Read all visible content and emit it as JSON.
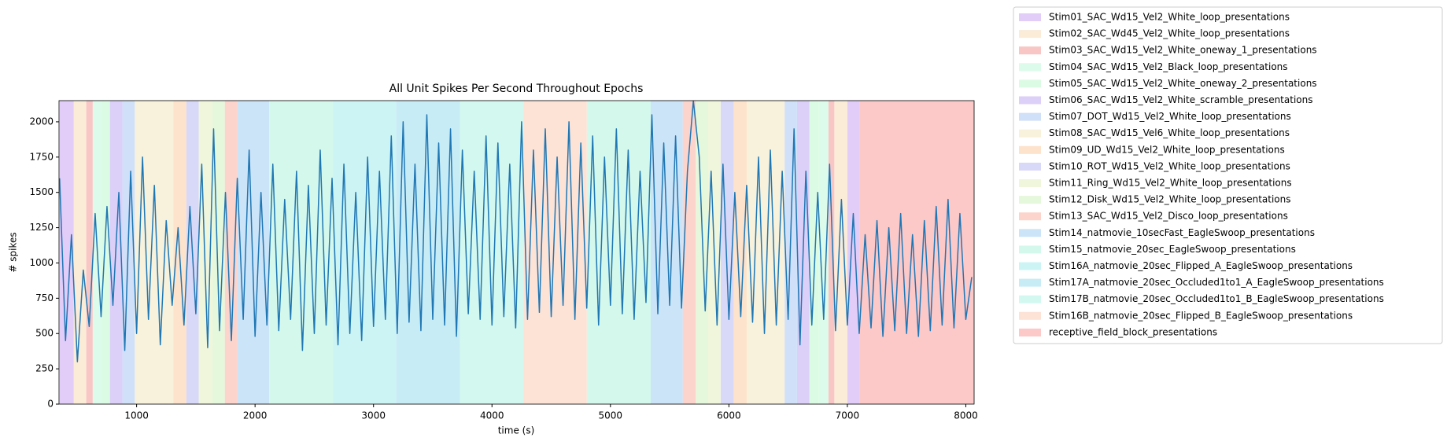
{
  "chart_data": {
    "type": "line",
    "title": "All Unit Spikes Per Second Throughout Epochs",
    "x_label": "time (s)",
    "y_label": "# spikes",
    "xlim": [
      345,
      8070
    ],
    "ylim": [
      0,
      2150
    ],
    "xticks": [
      1000,
      2000,
      3000,
      4000,
      5000,
      6000,
      7000,
      8000
    ],
    "yticks": [
      0,
      250,
      500,
      750,
      1000,
      1250,
      1500,
      1750,
      2000
    ],
    "legend": "outside-right",
    "x": [
      350,
      400,
      450,
      500,
      550,
      600,
      650,
      700,
      750,
      800,
      850,
      900,
      950,
      1000,
      1050,
      1100,
      1150,
      1200,
      1250,
      1300,
      1350,
      1400,
      1450,
      1500,
      1550,
      1600,
      1650,
      1700,
      1750,
      1800,
      1850,
      1900,
      1950,
      2000,
      2050,
      2100,
      2150,
      2200,
      2250,
      2300,
      2350,
      2400,
      2450,
      2500,
      2550,
      2600,
      2650,
      2700,
      2750,
      2800,
      2850,
      2900,
      2950,
      3000,
      3050,
      3100,
      3150,
      3200,
      3250,
      3300,
      3350,
      3400,
      3450,
      3500,
      3550,
      3600,
      3650,
      3700,
      3750,
      3800,
      3850,
      3900,
      3950,
      4000,
      4050,
      4100,
      4150,
      4200,
      4250,
      4300,
      4350,
      4400,
      4450,
      4500,
      4550,
      4600,
      4650,
      4700,
      4750,
      4800,
      4850,
      4900,
      4950,
      5000,
      5050,
      5100,
      5150,
      5200,
      5250,
      5300,
      5350,
      5400,
      5450,
      5500,
      5550,
      5600,
      5650,
      5700,
      5750,
      5800,
      5850,
      5900,
      5950,
      6000,
      6050,
      6100,
      6150,
      6200,
      6250,
      6300,
      6350,
      6400,
      6450,
      6500,
      6550,
      6600,
      6650,
      6700,
      6750,
      6800,
      6850,
      6900,
      6950,
      7000,
      7050,
      7100,
      7150,
      7200,
      7250,
      7300,
      7350,
      7400,
      7450,
      7500,
      7550,
      7600,
      7650,
      7700,
      7750,
      7800,
      7850,
      7900,
      7950,
      8000,
      8050
    ],
    "series": [
      {
        "color": "#1f77b4",
        "values": [
          1600,
          450,
          1200,
          300,
          950,
          550,
          1350,
          620,
          1400,
          700,
          1500,
          380,
          1650,
          500,
          1750,
          600,
          1550,
          420,
          1300,
          700,
          1250,
          560,
          1400,
          640,
          1700,
          400,
          1950,
          520,
          1500,
          450,
          1600,
          600,
          1800,
          480,
          1500,
          560,
          1700,
          520,
          1450,
          600,
          1650,
          380,
          1550,
          500,
          1800,
          560,
          1600,
          420,
          1700,
          500,
          1500,
          450,
          1750,
          550,
          1650,
          600,
          1900,
          500,
          2000,
          580,
          1700,
          520,
          2050,
          600,
          1850,
          560,
          1950,
          480,
          1800,
          640,
          1650,
          600,
          1900,
          560,
          1850,
          620,
          1700,
          540,
          2000,
          600,
          1800,
          650,
          1950,
          620,
          1750,
          700,
          2000,
          600,
          1850,
          680,
          1900,
          560,
          1750,
          700,
          1950,
          640,
          1800,
          600,
          1650,
          720,
          2050,
          640,
          1850,
          700,
          1900,
          680,
          1650,
          2150,
          1750,
          660,
          1650,
          560,
          1700,
          600,
          1500,
          620,
          1550,
          580,
          1750,
          500,
          1800,
          560,
          1650,
          600,
          1950,
          420,
          1650,
          560,
          1500,
          600,
          1700,
          520,
          1450,
          560,
          1350,
          500,
          1200,
          540,
          1300,
          480,
          1250,
          520,
          1350,
          500,
          1200,
          480,
          1300,
          520,
          1400,
          560,
          1450,
          540,
          1350,
          600,
          900
        ]
      }
    ],
    "stimuli": [
      {
        "name": "Stim01_SAC_Wd15_Vel2_White_loop_presentations",
        "color": "#e2ccf8",
        "epochs": [
          [
            350,
            470
          ],
          [
            7000,
            7105
          ]
        ]
      },
      {
        "name": "Stim02_SAC_Wd45_Vel2_White_loop_presentations",
        "color": "#fbecd8",
        "epochs": [
          [
            470,
            575
          ],
          [
            6890,
            7000
          ]
        ]
      },
      {
        "name": "Stim03_SAC_Wd15_Vel2_White_oneway_1_presentations",
        "color": "#f9c6c6",
        "epochs": [
          [
            575,
            630
          ],
          [
            6840,
            6890
          ]
        ]
      },
      {
        "name": "Stim04_SAC_Wd15_Vel2_Black_loop_presentations",
        "color": "#dcfbea",
        "epochs": [
          [
            630,
            700
          ],
          [
            6760,
            6840
          ]
        ]
      },
      {
        "name": "Stim05_SAC_Wd15_Vel2_White_oneway_2_presentations",
        "color": "#dcfbe4",
        "epochs": [
          [
            700,
            775
          ],
          [
            6680,
            6760
          ]
        ]
      },
      {
        "name": "Stim06_SAC_Wd15_Vel2_White_scramble_presentations",
        "color": "#dcd0f8",
        "epochs": [
          [
            775,
            880
          ],
          [
            6575,
            6680
          ]
        ]
      },
      {
        "name": "Stim07_DOT_Wd15_Vel2_White_loop_presentations",
        "color": "#d0e0f8",
        "epochs": [
          [
            880,
            985
          ],
          [
            6470,
            6575
          ]
        ]
      },
      {
        "name": "Stim08_SAC_Wd15_Vel6_White_loop_presentations",
        "color": "#f8f2dc",
        "epochs": [
          [
            985,
            1310
          ],
          [
            6150,
            6470
          ]
        ]
      },
      {
        "name": "Stim09_UD_Wd15_Vel2_White_loop_presentations",
        "color": "#fde2cc",
        "epochs": [
          [
            1310,
            1420
          ],
          [
            6040,
            6150
          ]
        ]
      },
      {
        "name": "Stim10_ROT_Wd15_Vel2_White_loop_presentations",
        "color": "#d8d8f8",
        "epochs": [
          [
            1420,
            1525
          ],
          [
            5930,
            6040
          ]
        ]
      },
      {
        "name": "Stim11_Ring_Wd15_Vel2_White_loop_presentations",
        "color": "#f0f6dc",
        "epochs": [
          [
            1525,
            1640
          ],
          [
            5825,
            5930
          ]
        ]
      },
      {
        "name": "Stim12_Disk_Wd15_Vel2_White_loop_presentations",
        "color": "#e6f8dc",
        "epochs": [
          [
            1640,
            1745
          ],
          [
            5720,
            5825
          ]
        ]
      },
      {
        "name": "Stim13_SAC_Wd15_Vel2_Disco_loop_presentations",
        "color": "#fcd4cc",
        "epochs": [
          [
            1745,
            1850
          ],
          [
            5610,
            5720
          ]
        ]
      },
      {
        "name": "Stim14_natmovie_10secFast_EagleSwoop_presentations",
        "color": "#cce4f8",
        "epochs": [
          [
            1850,
            2120
          ],
          [
            5340,
            5610
          ]
        ]
      },
      {
        "name": "Stim15_natmovie_20sec_EagleSwoop_presentations",
        "color": "#d4f8ec",
        "epochs": [
          [
            2120,
            2660
          ],
          [
            4800,
            5340
          ]
        ]
      },
      {
        "name": "Stim16A_natmovie_20sec_Flipped_A_EagleSwoop_presentations",
        "color": "#ccf4f4",
        "epochs": [
          [
            2660,
            3190
          ]
        ]
      },
      {
        "name": "Stim17A_natmovie_20sec_Occluded1to1_A_EagleSwoop_presentations",
        "color": "#c8ecf6",
        "epochs": [
          [
            3190,
            3730
          ]
        ]
      },
      {
        "name": "Stim17B_natmovie_20sec_Occluded1to1_B_EagleSwoop_presentations",
        "color": "#d2f8f0",
        "epochs": [
          [
            3730,
            4265
          ]
        ]
      },
      {
        "name": "Stim16B_natmovie_20sec_Flipped_B_EagleSwoop_presentations",
        "color": "#fde2d6",
        "epochs": [
          [
            4265,
            4800
          ]
        ]
      },
      {
        "name": "receptive_field_block_presentations",
        "color": "#fcc8c8",
        "epochs": [
          [
            7105,
            8070
          ]
        ]
      }
    ]
  }
}
